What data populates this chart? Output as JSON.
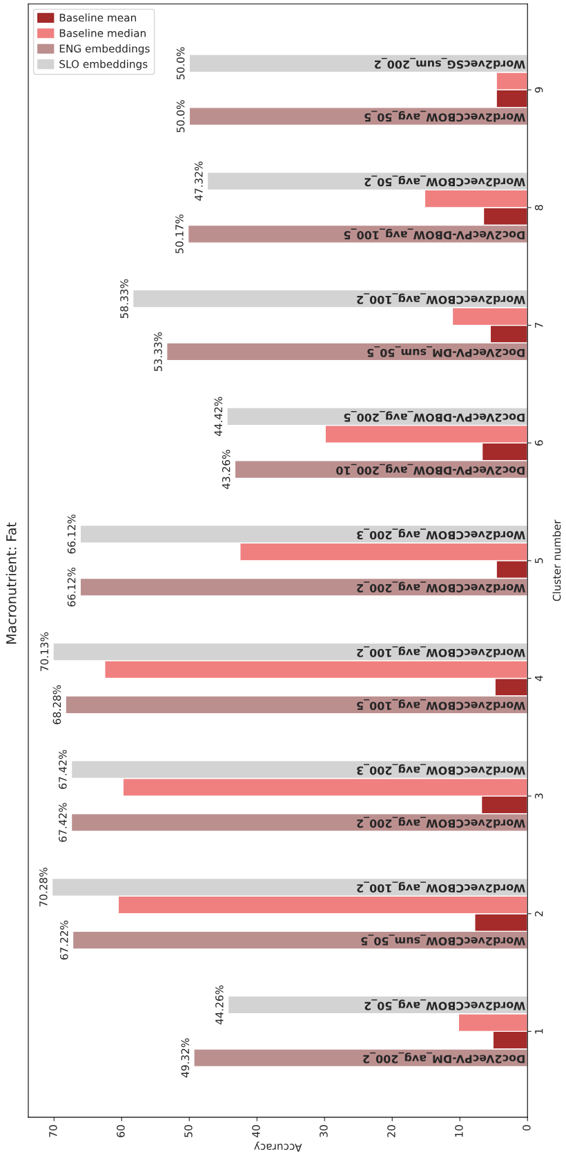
{
  "chart_data": {
    "type": "bar",
    "orientation": "horizontal",
    "title": "Macronutrient: Fat",
    "xlabel": "Accuracy",
    "ylabel": "Cluster number",
    "categories": [
      "9",
      "8",
      "7",
      "6",
      "5",
      "4",
      "3",
      "2",
      "1"
    ],
    "series": [
      {
        "name": "Baseline mean",
        "color": "#a52a2a",
        "values": [
          4.6,
          6.5,
          5.5,
          6.7,
          4.6,
          4.8,
          6.8,
          7.8,
          5.1
        ]
      },
      {
        "name": "Baseline median",
        "color": "#f08080",
        "values": [
          4.6,
          15.2,
          11.1,
          29.9,
          42.5,
          62.5,
          59.8,
          60.5,
          10.2
        ]
      },
      {
        "name": "ENG embeddings",
        "color": "#bc8f8f",
        "values": [
          50.0,
          50.17,
          53.33,
          43.26,
          66.12,
          68.28,
          67.42,
          67.22,
          49.32
        ],
        "value_labels": [
          "50.0%",
          "50.17%",
          "53.33%",
          "43.26%",
          "66.12%",
          "68.28%",
          "67.42%",
          "67.22%",
          "49.32%"
        ]
      },
      {
        "name": "SLO embeddings",
        "color": "#d3d3d3",
        "values": [
          50.0,
          47.32,
          58.33,
          44.42,
          66.12,
          70.13,
          67.42,
          70.28,
          44.26
        ],
        "value_labels": [
          "50.0%",
          "47.32%",
          "58.33%",
          "44.42%",
          "66.12%",
          "70.13%",
          "67.42%",
          "70.28%",
          "44.26%"
        ]
      }
    ],
    "annotations": [
      "Word2vecCBOW_avg_50_5",
      "Word2vecSG_sum_200_2",
      "Doc2VecPV-DBOW_avg_100_5",
      "Word2vecCBOW_avg_50_2",
      "Doc2VecPV-DM_sum_50_5",
      "Word2vecCBOW_avg_100_2",
      "Doc2VecPV-DBOW_avg_200_10",
      "Doc2VecPV-DBOW_avg_200_5",
      "Word2vecCBOW_avg_200_2",
      "Word2vecCBOW_avg_200_3",
      "Word2vecCBOW_avg_100_5",
      "Word2vecCBOW_avg_100_2",
      "Word2vecCBOW_avg_200_2",
      "Word2vecCBOW_avg_200_3",
      "Word2vecCBOW_sum_50_5",
      "Word2vecCBOW_avg_100_2",
      "Doc2VecPV-DM_avg_200_2",
      "Word2vecCBOW_avg_50_2"
    ],
    "xlim": [
      73.8,
      0
    ],
    "xticks": [
      0,
      10,
      20,
      30,
      40,
      50,
      60,
      70
    ],
    "legend": "top left",
    "grid": false
  }
}
